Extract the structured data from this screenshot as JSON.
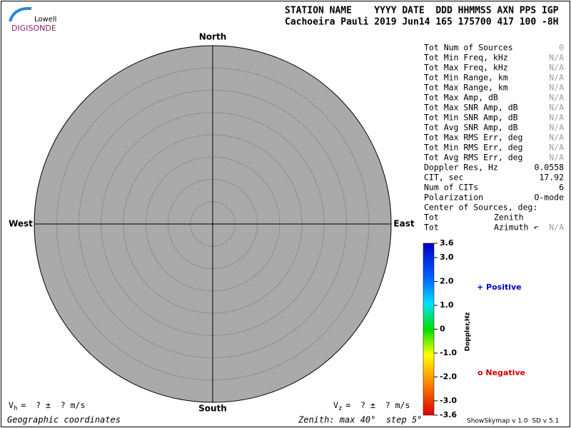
{
  "logo": {
    "top": "Lowell",
    "bottom": "DIGISONDE"
  },
  "header": {
    "line1": "STATION NAME    YYYY DATE  DDD HHMMSS AXN PPS IGP",
    "line2": "Cachoeira Pauli 2019 Jun14 165 175700 417 100 -8H"
  },
  "skymap": {
    "north": "North",
    "south": "South",
    "east": "East",
    "west": "West"
  },
  "stats": [
    {
      "label": "Tot Num of Sources",
      "value": "0",
      "na": true
    },
    {
      "label": "Tot Min Freq, kHz",
      "value": "N/A",
      "na": true
    },
    {
      "label": "Tot Max Freq, kHz",
      "value": "N/A",
      "na": true
    },
    {
      "label": "Tot Min Range, km",
      "value": "N/A",
      "na": true
    },
    {
      "label": "Tot Max Range, km",
      "value": "N/A",
      "na": true
    },
    {
      "label": "Tot Max Amp, dB",
      "value": "N/A",
      "na": true
    },
    {
      "label": "Tot Max SNR Amp, dB",
      "value": "N/A",
      "na": true
    },
    {
      "label": "Tot Min SNR Amp, dB",
      "value": "N/A",
      "na": true
    },
    {
      "label": "Tot Avg SNR Amp, dB",
      "value": "N/A",
      "na": true
    },
    {
      "label": "Tot Max RMS Err, deg",
      "value": "N/A",
      "na": true
    },
    {
      "label": "Tot Min RMS Err, deg",
      "value": "N/A",
      "na": true
    },
    {
      "label": "Tot Avg RMS Err, deg",
      "value": "N/A",
      "na": true
    },
    {
      "label": "Doppler Res, Hz",
      "value": "0.0558",
      "na": false
    },
    {
      "label": "CIT, sec",
      "value": "17.92",
      "na": false
    },
    {
      "label": "Num of CITs",
      "value": "6",
      "na": false
    },
    {
      "label": "Polarization",
      "value": "O-mode",
      "na": false
    },
    {
      "label": "Center of Sources, deg:"
    },
    {
      "label": "Tot",
      "sub": "Zenith"
    },
    {
      "label": "Tot",
      "sub": "Azimuth ↶",
      "value": "N/A",
      "na": true
    }
  ],
  "colorbar": {
    "title": "Doppler,Hz",
    "lim": [
      -3.6,
      3.6
    ],
    "ticks": [
      3.6,
      {
        "value": 3,
        "label": "3.0"
      },
      {
        "value": 2,
        "label": "2.0"
      },
      {
        "value": 1,
        "label": "1.0"
      },
      0,
      {
        "value": -1,
        "label": "-1.0"
      },
      {
        "value": -2,
        "label": "-2.0"
      },
      {
        "value": -3,
        "label": "-3.0"
      },
      -3.6
    ]
  },
  "legend": {
    "positive": "+ Positive",
    "negative": "o Negative"
  },
  "footer": {
    "vh": {
      "symbol": "V",
      "sub": "h",
      "text": "=  ? ±  ? m/s"
    },
    "vz": {
      "symbol": "V",
      "sub": "z",
      "text": "=  ? ±  ? m/s"
    },
    "coords": "Geographic coordinates",
    "zenith": "Zenith: max 40°  step 5°",
    "version": "ShowSkymap v 1.0  SD v 5.1"
  }
}
